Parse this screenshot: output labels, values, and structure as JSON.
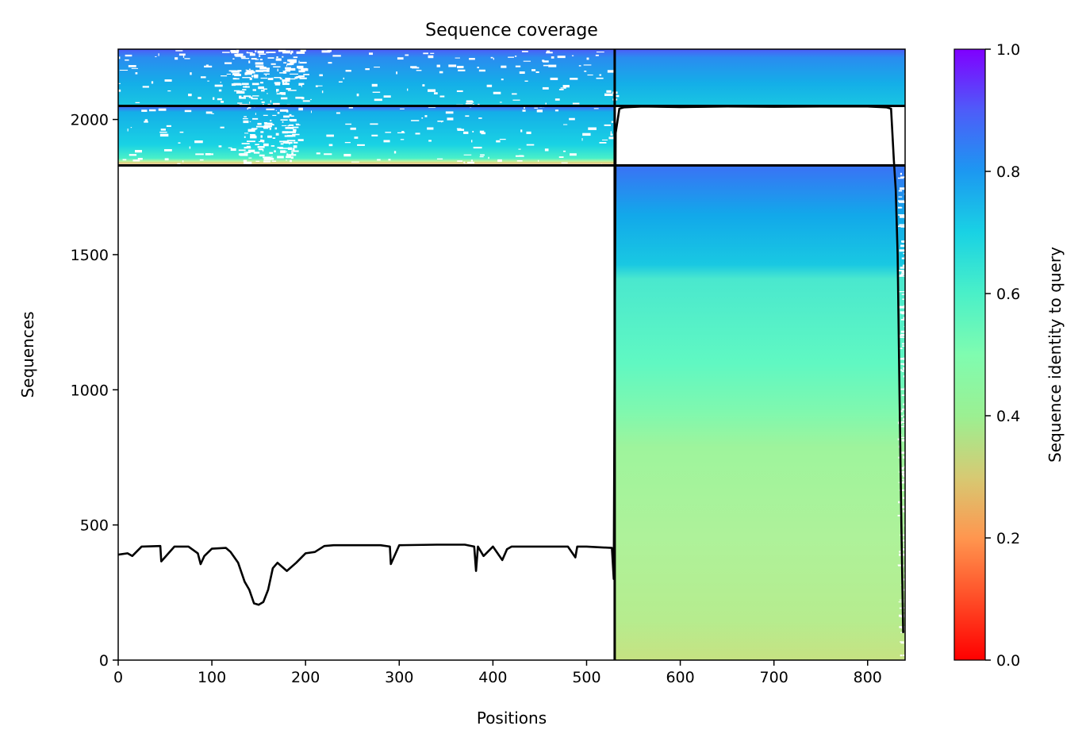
{
  "chart_data": {
    "type": "heatmap",
    "title": "Sequence coverage",
    "xlabel": "Positions",
    "ylabel": "Sequences",
    "xlim": [
      0,
      840
    ],
    "ylim": [
      0,
      2260
    ],
    "x_ticks": [
      0,
      100,
      200,
      300,
      400,
      500,
      600,
      700,
      800
    ],
    "y_ticks": [
      0,
      500,
      1000,
      1500,
      2000
    ],
    "colorbar": {
      "label": "Sequence identity to query",
      "range": [
        0,
        1
      ],
      "ticks": [
        "0.0",
        "0.2",
        "0.4",
        "0.6",
        "0.8",
        "1.0"
      ],
      "colormap": "rainbow_r"
    },
    "chain_boundary_position": 530,
    "alignment_blocks": [
      {
        "name": "paired",
        "x_range": [
          0,
          840
        ],
        "y_range": [
          2050,
          2260
        ],
        "identity_range": [
          0.7,
          0.85
        ]
      },
      {
        "name": "chain-1 unpaired",
        "x_range": [
          0,
          530
        ],
        "y_range": [
          1830,
          2050
        ],
        "identity_range": [
          0.3,
          0.85
        ]
      },
      {
        "name": "chain-2 unpaired",
        "x_range": [
          530,
          840
        ],
        "y_range": [
          0,
          1830
        ],
        "identity_range": [
          0.4,
          0.85
        ]
      }
    ],
    "block_separators_y": [
      1830,
      2050
    ],
    "coverage_series": {
      "positions": [
        0,
        10,
        15,
        25,
        45,
        46,
        60,
        75,
        85,
        88,
        92,
        100,
        115,
        120,
        128,
        135,
        140,
        145,
        150,
        155,
        160,
        165,
        170,
        175,
        180,
        190,
        200,
        210,
        220,
        230,
        240,
        260,
        280,
        290,
        291,
        300,
        340,
        370,
        380,
        382,
        384,
        390,
        400,
        410,
        415,
        420,
        440,
        480,
        488,
        490,
        500,
        527,
        529,
        531,
        535,
        540,
        560,
        600,
        650,
        700,
        750,
        800,
        820,
        825,
        828,
        830,
        832,
        834,
        836,
        838
      ],
      "coverage": [
        390,
        395,
        385,
        420,
        422,
        365,
        420,
        420,
        395,
        355,
        385,
        412,
        415,
        400,
        360,
        290,
        260,
        210,
        205,
        215,
        260,
        340,
        360,
        345,
        330,
        360,
        395,
        400,
        422,
        425,
        425,
        425,
        425,
        420,
        355,
        425,
        427,
        427,
        420,
        330,
        420,
        385,
        420,
        370,
        410,
        420,
        420,
        420,
        380,
        420,
        420,
        415,
        300,
        1950,
        2040,
        2045,
        2048,
        2046,
        2048,
        2047,
        2048,
        2048,
        2045,
        2040,
        1850,
        1740,
        1500,
        1000,
        500,
        100
      ]
    }
  }
}
